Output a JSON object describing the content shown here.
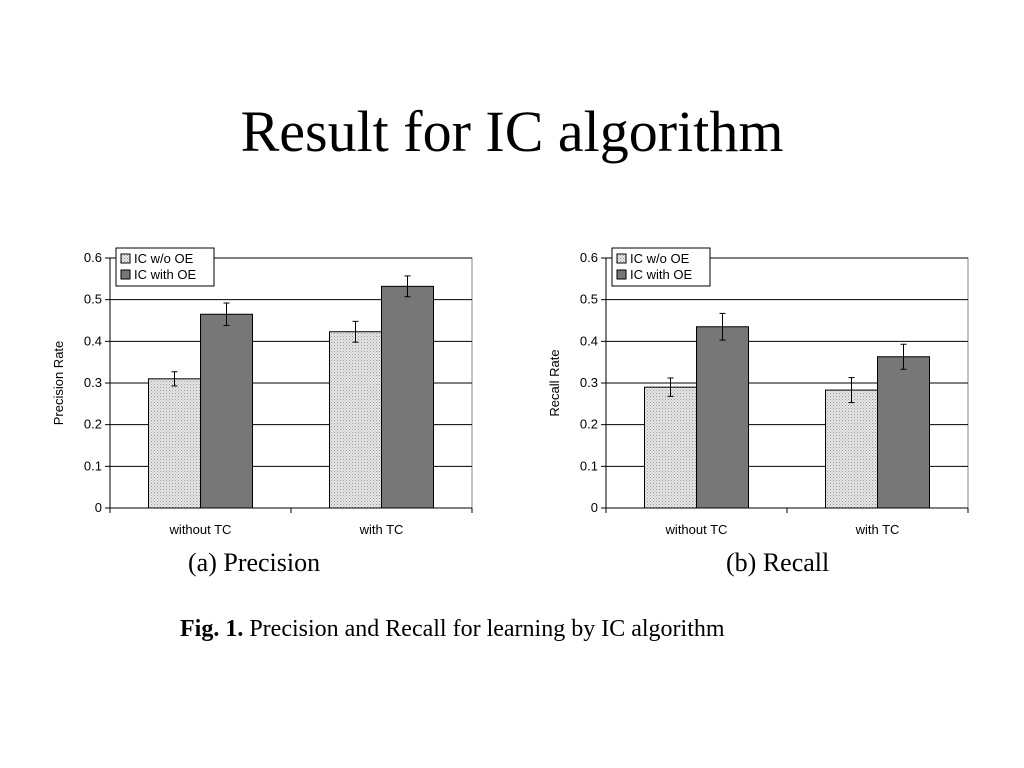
{
  "slide": {
    "title": "Result for IC algorithm",
    "caption_a": "(a) Precision",
    "caption_b": "(b) Recall",
    "fig_label": "Fig. 1.",
    "fig_text": " Precision and Recall for learning by IC algorithm"
  },
  "chart_data": [
    {
      "type": "bar",
      "title": "",
      "xlabel": "",
      "ylabel": "Precision Rate",
      "ylim": [
        0,
        0.6
      ],
      "yticks": [
        0,
        0.1,
        0.2,
        0.3,
        0.4,
        0.5,
        0.6
      ],
      "ytick_labels": [
        "0",
        "0.1",
        "0.2",
        "0.3",
        "0.4",
        "0.5",
        "0.6"
      ],
      "grid": true,
      "legend_position": "top-left",
      "categories": [
        "without TC",
        "with TC"
      ],
      "series": [
        {
          "name": "IC w/o OE",
          "values": [
            0.31,
            0.423
          ],
          "errors": [
            0.017,
            0.025
          ],
          "color": "#d6d6d6"
        },
        {
          "name": "IC with OE",
          "values": [
            0.465,
            0.532
          ],
          "errors": [
            0.027,
            0.025
          ],
          "color": "#777777"
        }
      ]
    },
    {
      "type": "bar",
      "title": "",
      "xlabel": "",
      "ylabel": "Recall Rate",
      "ylim": [
        0,
        0.6
      ],
      "yticks": [
        0,
        0.1,
        0.2,
        0.3,
        0.4,
        0.5,
        0.6
      ],
      "ytick_labels": [
        "0",
        "0.1",
        "0.2",
        "0.3",
        "0.4",
        "0.5",
        "0.6"
      ],
      "grid": true,
      "legend_position": "top-left",
      "categories": [
        "without TC",
        "with TC"
      ],
      "series": [
        {
          "name": "IC w/o OE",
          "values": [
            0.29,
            0.283
          ],
          "errors": [
            0.022,
            0.03
          ],
          "color": "#d6d6d6"
        },
        {
          "name": "IC with OE",
          "values": [
            0.435,
            0.363
          ],
          "errors": [
            0.032,
            0.03
          ],
          "color": "#777777"
        }
      ]
    }
  ]
}
